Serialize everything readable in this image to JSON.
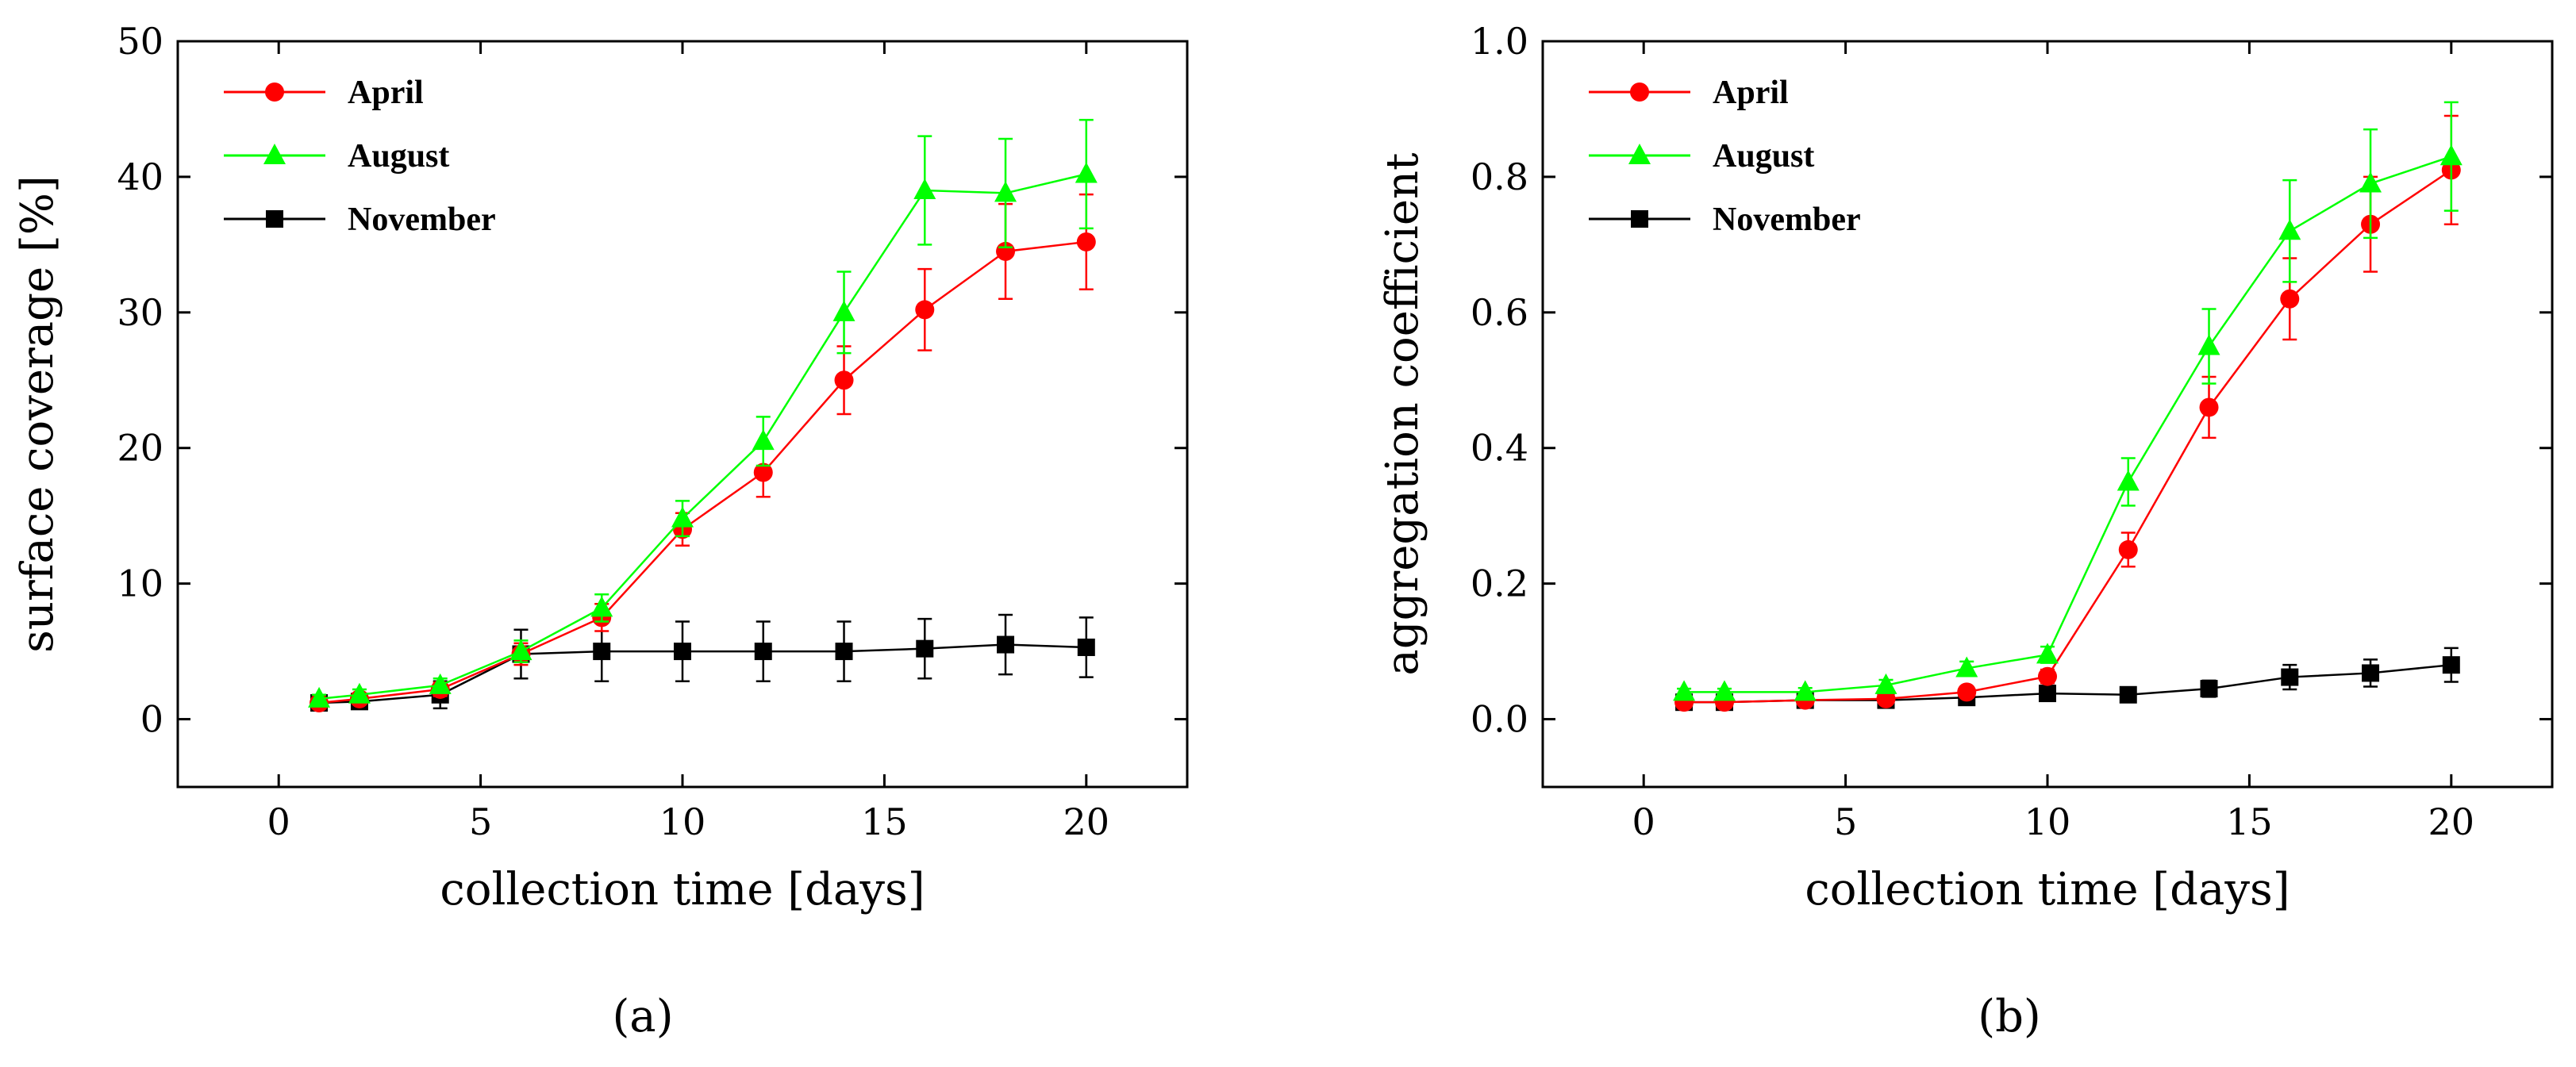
{
  "chart_data": [
    {
      "type": "line",
      "panel": "(a)",
      "xlabel": "collection time [days]",
      "ylabel": "surface coverage [%]",
      "xlim": [
        -2.5,
        22.5
      ],
      "ylim": [
        -5,
        50
      ],
      "xticks": [
        0,
        5,
        10,
        15,
        20
      ],
      "yticks": [
        0,
        10,
        20,
        30,
        40,
        50
      ],
      "ytick_labels": [
        "0",
        "10",
        "20",
        "30",
        "40",
        "50"
      ],
      "legend_position": "top-left",
      "series": [
        {
          "name": "April",
          "color": "#ff0000",
          "marker": "circle",
          "x": [
            1,
            2,
            4,
            6,
            8,
            10,
            12,
            14,
            16,
            18,
            20
          ],
          "y": [
            1.2,
            1.5,
            2.2,
            4.8,
            7.5,
            14.0,
            18.2,
            25.0,
            30.2,
            34.5,
            35.2
          ],
          "err": [
            0.3,
            0.4,
            0.5,
            0.8,
            1.0,
            1.2,
            1.8,
            2.5,
            3.0,
            3.5,
            3.5
          ]
        },
        {
          "name": "August",
          "color": "#00ff00",
          "marker": "triangle",
          "x": [
            1,
            2,
            4,
            6,
            8,
            10,
            12,
            14,
            16,
            18,
            20
          ],
          "y": [
            1.5,
            1.8,
            2.5,
            5.0,
            8.2,
            14.8,
            20.5,
            30.0,
            39.0,
            38.8,
            40.2
          ],
          "err": [
            0.3,
            0.4,
            0.5,
            0.8,
            1.0,
            1.3,
            1.8,
            3.0,
            4.0,
            4.0,
            4.0
          ]
        },
        {
          "name": "November",
          "color": "#000000",
          "marker": "square",
          "x": [
            1,
            2,
            4,
            6,
            8,
            10,
            12,
            14,
            16,
            18,
            20
          ],
          "y": [
            1.2,
            1.3,
            1.8,
            4.8,
            5.0,
            5.0,
            5.0,
            5.0,
            5.2,
            5.5,
            5.3
          ],
          "err": [
            0.5,
            0.5,
            1.0,
            1.8,
            2.2,
            2.2,
            2.2,
            2.2,
            2.2,
            2.2,
            2.2
          ]
        }
      ]
    },
    {
      "type": "line",
      "panel": "(b)",
      "xlabel": "collection time [days]",
      "ylabel": "aggregation coefficient",
      "xlim": [
        -2.5,
        22.5
      ],
      "ylim": [
        -0.1,
        1.0
      ],
      "xticks": [
        0,
        5,
        10,
        15,
        20
      ],
      "yticks": [
        0,
        0.2,
        0.4,
        0.6,
        0.8,
        1.0
      ],
      "ytick_labels": [
        "0.0",
        "0.2",
        "0.4",
        "0.6",
        "0.8",
        "1.0"
      ],
      "legend_position": "top-left",
      "series": [
        {
          "name": "April",
          "color": "#ff0000",
          "marker": "circle",
          "x": [
            1,
            2,
            4,
            6,
            8,
            10,
            12,
            14,
            16,
            18,
            20
          ],
          "y": [
            0.025,
            0.025,
            0.028,
            0.03,
            0.04,
            0.063,
            0.25,
            0.46,
            0.62,
            0.73,
            0.81
          ],
          "err": [
            0.005,
            0.005,
            0.005,
            0.005,
            0.008,
            0.01,
            0.025,
            0.045,
            0.06,
            0.07,
            0.08
          ]
        },
        {
          "name": "August",
          "color": "#00ff00",
          "marker": "triangle",
          "x": [
            1,
            2,
            4,
            6,
            8,
            10,
            12,
            14,
            16,
            18,
            20
          ],
          "y": [
            0.04,
            0.04,
            0.04,
            0.05,
            0.075,
            0.095,
            0.35,
            0.55,
            0.72,
            0.79,
            0.83
          ],
          "err": [
            0.005,
            0.005,
            0.006,
            0.008,
            0.01,
            0.012,
            0.035,
            0.055,
            0.075,
            0.08,
            0.08
          ]
        },
        {
          "name": "November",
          "color": "#000000",
          "marker": "square",
          "x": [
            1,
            2,
            4,
            6,
            8,
            10,
            12,
            14,
            16,
            18,
            20
          ],
          "y": [
            0.025,
            0.025,
            0.028,
            0.028,
            0.032,
            0.038,
            0.036,
            0.045,
            0.062,
            0.068,
            0.08
          ],
          "err": [
            0.005,
            0.005,
            0.005,
            0.006,
            0.008,
            0.01,
            0.008,
            0.012,
            0.018,
            0.02,
            0.025
          ]
        }
      ]
    }
  ]
}
